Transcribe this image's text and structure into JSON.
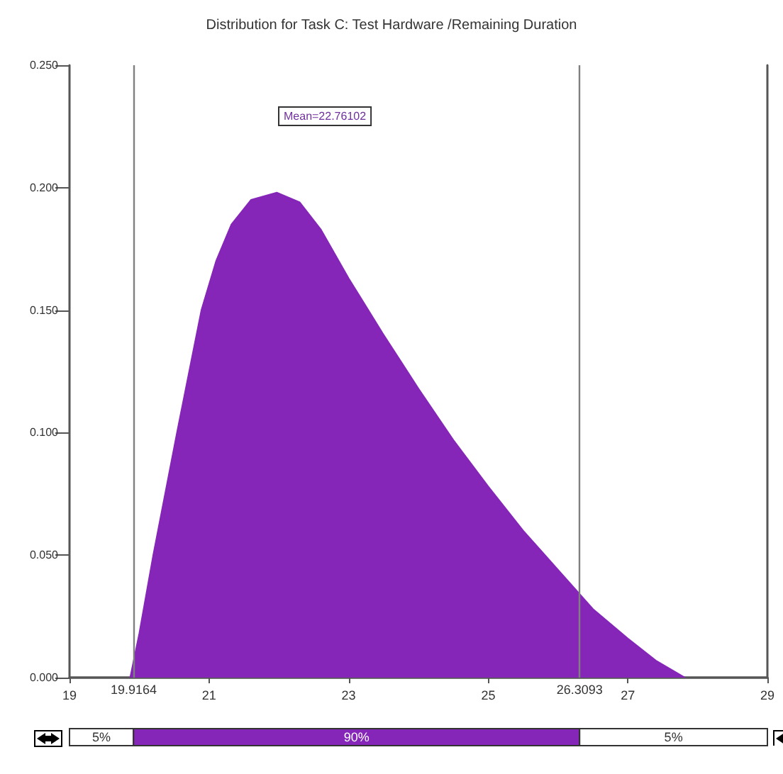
{
  "chart_data": {
    "type": "area",
    "title": "Distribution for Task C: Test Hardware /Remaining Duration",
    "x": [
      19.87,
      20.0,
      20.2,
      20.54,
      20.89,
      21.1,
      21.32,
      21.6,
      21.97,
      22.3,
      22.6,
      23.0,
      23.5,
      24.0,
      24.5,
      25.0,
      25.5,
      26.0,
      26.5,
      27.0,
      27.4,
      27.82
    ],
    "series": [
      {
        "color": "#8526b8",
        "values": [
          0,
          0.018,
          0.05,
          0.1,
          0.15,
          0.17,
          0.185,
          0.195,
          0.198,
          0.194,
          0.183,
          0.163,
          0.14,
          0.118,
          0.097,
          0.078,
          0.06,
          0.044,
          0.028,
          0.016,
          0.007,
          0
        ]
      }
    ],
    "xlim": [
      19,
      29
    ],
    "xticks": [
      19,
      21,
      23,
      25,
      27,
      29
    ],
    "ylim": [
      0,
      0.25
    ],
    "yticks": [
      {
        "value": 0,
        "label": "0.000"
      },
      {
        "value": 0.05,
        "label": "0.050"
      },
      {
        "value": 0.1,
        "label": "0.100"
      },
      {
        "value": 0.15,
        "label": "0.150"
      },
      {
        "value": 0.2,
        "label": "0.200"
      },
      {
        "value": 0.25,
        "label": "0.250"
      }
    ],
    "ref_lines": [
      {
        "axis": "x",
        "value": 19.9164,
        "label": "19.9164",
        "color": "#808080"
      },
      {
        "axis": "x",
        "value": 26.3093,
        "label": "26.3093",
        "color": "#808080"
      }
    ],
    "annotations": [
      "Mean=22.76102",
      "5%",
      "90%",
      "5%"
    ],
    "grid": false,
    "marker": "none"
  }
}
